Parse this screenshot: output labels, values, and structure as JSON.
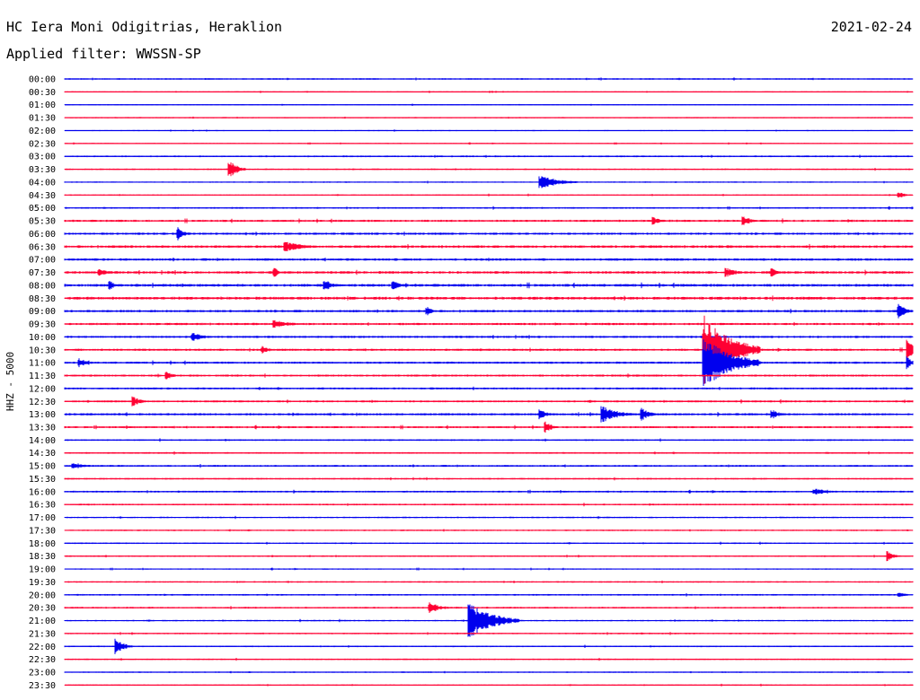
{
  "header": {
    "station": "HC Iera Moni Odigitrias, Heraklion",
    "filter": "Applied filter: WWSSN-SP",
    "date": "2021-02-24"
  },
  "colors": {
    "even_trace": "#0000ee",
    "odd_trace": "#ff0033"
  },
  "chart_data": {
    "type": "line",
    "title": "HC Iera Moni Odigitrias, Heraklion",
    "subtitle": "Applied filter: WWSSN-SP",
    "ylabel": "HHZ - 5000",
    "grid": false,
    "row_labels": [
      "00:00",
      "00:30",
      "01:00",
      "01:30",
      "02:00",
      "02:30",
      "03:00",
      "03:30",
      "04:00",
      "04:30",
      "05:00",
      "05:30",
      "06:00",
      "06:30",
      "07:00",
      "07:30",
      "08:00",
      "08:30",
      "09:00",
      "09:30",
      "10:00",
      "10:30",
      "11:00",
      "11:30",
      "12:00",
      "12:30",
      "13:00",
      "13:30",
      "14:00",
      "14:30",
      "15:00",
      "15:30",
      "16:00",
      "16:30",
      "17:00",
      "17:30",
      "18:00",
      "18:30",
      "19:00",
      "19:30",
      "20:00",
      "20:30",
      "21:00",
      "21:30",
      "22:00",
      "22:30",
      "23:00",
      "23:30"
    ],
    "x_unit": "minutes after row start",
    "x_range": [
      0,
      30
    ],
    "noise": [
      0.8,
      0.6,
      0.6,
      0.7,
      0.6,
      0.6,
      0.9,
      0.8,
      0.7,
      0.7,
      0.9,
      1.2,
      1.2,
      1.4,
      1.3,
      1.4,
      1.5,
      1.5,
      1.3,
      1.2,
      1.2,
      1.2,
      1.2,
      1.1,
      1.1,
      1.1,
      1.2,
      1.1,
      0.9,
      0.9,
      1.0,
      0.9,
      1.0,
      0.9,
      0.8,
      0.8,
      0.8,
      0.8,
      0.7,
      0.8,
      0.9,
      0.9,
      0.8,
      0.8,
      0.8,
      0.8,
      0.7,
      0.7
    ],
    "events": [
      {
        "row": "03:30",
        "minute": 5.8,
        "amplitude": 12,
        "duration": 0.6
      },
      {
        "row": "04:00",
        "minute": 16.8,
        "amplitude": 8,
        "duration": 1.4
      },
      {
        "row": "04:30",
        "minute": 29.5,
        "amplitude": 4,
        "duration": 0.5
      },
      {
        "row": "05:30",
        "minute": 20.8,
        "amplitude": 5,
        "duration": 0.6
      },
      {
        "row": "05:30",
        "minute": 24.0,
        "amplitude": 6,
        "duration": 0.6
      },
      {
        "row": "06:00",
        "minute": 4.0,
        "amplitude": 8,
        "duration": 0.5
      },
      {
        "row": "06:30",
        "minute": 7.8,
        "amplitude": 6,
        "duration": 1.4
      },
      {
        "row": "07:30",
        "minute": 1.2,
        "amplitude": 4,
        "duration": 0.8
      },
      {
        "row": "07:30",
        "minute": 7.4,
        "amplitude": 6,
        "duration": 0.4
      },
      {
        "row": "07:30",
        "minute": 23.4,
        "amplitude": 6,
        "duration": 0.8
      },
      {
        "row": "07:30",
        "minute": 25.0,
        "amplitude": 5,
        "duration": 0.5
      },
      {
        "row": "08:00",
        "minute": 1.6,
        "amplitude": 7,
        "duration": 0.3
      },
      {
        "row": "08:00",
        "minute": 9.2,
        "amplitude": 7,
        "duration": 0.6
      },
      {
        "row": "08:00",
        "minute": 11.6,
        "amplitude": 5,
        "duration": 0.5
      },
      {
        "row": "08:00",
        "minute": 11.6,
        "amplitude": 6,
        "duration": 0.5
      },
      {
        "row": "09:00",
        "minute": 12.8,
        "amplitude": 6,
        "duration": 0.4
      },
      {
        "row": "09:00",
        "minute": 29.5,
        "amplitude": 8,
        "duration": 0.6
      },
      {
        "row": "09:30",
        "minute": 7.4,
        "amplitude": 5,
        "duration": 1.2
      },
      {
        "row": "10:00",
        "minute": 4.5,
        "amplitude": 5,
        "duration": 1.0
      },
      {
        "row": "10:30",
        "minute": 22.6,
        "amplitude": 40,
        "duration": 2.0
      },
      {
        "row": "10:30",
        "minute": 7.0,
        "amplitude": 5,
        "duration": 0.5
      },
      {
        "row": "10:30",
        "minute": 29.8,
        "amplitude": 12,
        "duration": 0.6
      },
      {
        "row": "11:00",
        "minute": 22.6,
        "amplitude": 30,
        "duration": 2.0
      },
      {
        "row": "11:00",
        "minute": 0.5,
        "amplitude": 6,
        "duration": 0.6
      },
      {
        "row": "11:00",
        "minute": 29.8,
        "amplitude": 8,
        "duration": 0.4
      },
      {
        "row": "11:30",
        "minute": 3.6,
        "amplitude": 5,
        "duration": 0.5
      },
      {
        "row": "12:30",
        "minute": 2.4,
        "amplitude": 6,
        "duration": 0.6
      },
      {
        "row": "13:00",
        "minute": 16.8,
        "amplitude": 6,
        "duration": 0.6
      },
      {
        "row": "13:00",
        "minute": 19.0,
        "amplitude": 10,
        "duration": 1.2
      },
      {
        "row": "13:00",
        "minute": 20.4,
        "amplitude": 8,
        "duration": 0.6
      },
      {
        "row": "13:00",
        "minute": 25.0,
        "amplitude": 6,
        "duration": 0.6
      },
      {
        "row": "13:30",
        "minute": 17.0,
        "amplitude": 7,
        "duration": 0.5
      },
      {
        "row": "15:00",
        "minute": 0.3,
        "amplitude": 4,
        "duration": 1.0
      },
      {
        "row": "16:00",
        "minute": 26.5,
        "amplitude": 4,
        "duration": 1.2
      },
      {
        "row": "18:30",
        "minute": 29.1,
        "amplitude": 6,
        "duration": 0.5
      },
      {
        "row": "20:00",
        "minute": 29.5,
        "amplitude": 3,
        "duration": 0.6
      },
      {
        "row": "20:30",
        "minute": 12.9,
        "amplitude": 7,
        "duration": 0.8
      },
      {
        "row": "21:00",
        "minute": 14.3,
        "amplitude": 20,
        "duration": 1.8
      },
      {
        "row": "22:00",
        "minute": 1.8,
        "amplitude": 10,
        "duration": 0.6
      }
    ]
  }
}
